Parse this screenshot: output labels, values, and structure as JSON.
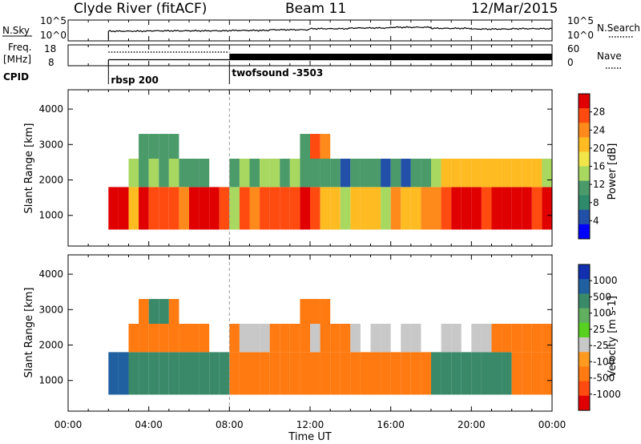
{
  "header": {
    "station": "Clyde River (fitACF)",
    "beam": "Beam 11",
    "date": "12/Mar/2015"
  },
  "top_panels": {
    "nsky_label": "N.Sky",
    "nsky_ticks": [
      "10^5",
      "10^0"
    ],
    "nsearch_label": "N.Search",
    "nsearch_ticks": [
      "10^5",
      "10^0"
    ],
    "freq_label": "Freq.",
    "freq_unit": "[MHz]",
    "freq_ticks": [
      "18",
      "8"
    ],
    "nave_label": "Nave",
    "nave_ticks": [
      "60",
      "0"
    ],
    "cpid_label": "CPID",
    "cpid_entries": [
      {
        "name": "rbsp 200",
        "start_hour": 2.0
      },
      {
        "name": "twofsound -3503",
        "start_hour": 8.0
      }
    ]
  },
  "axes": {
    "xlabel": "Time UT",
    "xticks": [
      "00:00",
      "04:00",
      "08:00",
      "12:00",
      "16:00",
      "20:00",
      "00:00"
    ],
    "ylabel": "Slant Range [km]",
    "yticks": [
      "1000",
      "2000",
      "3000",
      "4000"
    ]
  },
  "power_colorbar": {
    "label": "Power [dB]",
    "ticks": [
      "28",
      "24",
      "20",
      "16",
      "12",
      "8",
      "4"
    ],
    "colors": [
      "#e00000",
      "#ff4a10",
      "#ff8a1c",
      "#ffbb22",
      "#f0e64a",
      "#a8d860",
      "#4a9a6a",
      "#2e8a6a",
      "#2250a8",
      "#0000ff"
    ]
  },
  "velocity_colorbar": {
    "label": "Velocity [m s-1]",
    "ticks": [
      "1000",
      "500",
      "100",
      "25",
      "-25",
      "-100",
      "-500",
      "-1000"
    ],
    "colors": [
      "#1030b0",
      "#2060a0",
      "#3a8a6a",
      "#60b060",
      "#58d020",
      "#c8c8c8",
      "#ff9a20",
      "#ff7a10",
      "#ff4a10",
      "#e00000"
    ]
  },
  "chart_data": [
    {
      "type": "line",
      "title": "N.Sky",
      "x_hours": [
        2,
        4,
        6,
        8,
        10,
        12,
        14,
        16,
        18,
        20,
        22,
        24
      ],
      "values_log10": [
        2.3,
        2.4,
        2.4,
        2.5,
        2.7,
        3.0,
        3.2,
        3.4,
        3.1,
        2.9,
        3.0,
        3.2
      ],
      "xlim": [
        0,
        24
      ],
      "ylim": [
        0,
        5
      ]
    },
    {
      "type": "line",
      "title": "Freq. [MHz] / Nave",
      "x_hours": [
        2,
        8,
        8,
        24
      ],
      "freq_mhz": [
        10.5,
        10.5,
        10.5,
        10.5
      ],
      "nave_values": [
        40,
        40,
        40,
        40
      ],
      "xlim": [
        0,
        24
      ],
      "ylim": [
        8,
        18
      ]
    },
    {
      "type": "heatmap",
      "title": "Power [dB]",
      "ylabel": "Slant Range [km]",
      "xlabel": "Time UT",
      "xlim": [
        0,
        24
      ],
      "ylim": [
        180,
        4500
      ],
      "x_hours": [
        2,
        2.5,
        3,
        3.5,
        4,
        4.5,
        5,
        5.5,
        6,
        6.5,
        7,
        7.5,
        8,
        8.5,
        9,
        9.5,
        10,
        10.5,
        11,
        11.5,
        12,
        12.5,
        13,
        13.5,
        14,
        14.5,
        15,
        15.5,
        16,
        16.5,
        17,
        17.5,
        18,
        18.5,
        19,
        19.5,
        20,
        20.5,
        21,
        21.5,
        22,
        22.5,
        23,
        23.5
      ],
      "bands": [
        {
          "range_km": [
            600,
            1800
          ],
          "power_db": [
            28,
            26,
            18,
            26,
            24,
            22,
            22,
            20,
            26,
            28,
            26,
            24,
            14,
            22,
            20,
            22,
            24,
            22,
            24,
            26,
            22,
            18,
            16,
            14,
            18,
            16,
            16,
            14,
            20,
            18,
            18,
            20,
            20,
            22,
            26,
            26,
            26,
            24,
            26,
            26,
            26,
            26,
            24,
            26
          ]
        },
        {
          "range_km": [
            1800,
            2600
          ],
          "power_db": [
            0,
            0,
            14,
            12,
            14,
            12,
            14,
            12,
            10,
            12,
            0,
            0,
            10,
            14,
            12,
            14,
            14,
            12,
            14,
            10,
            10,
            12,
            10,
            8,
            12,
            10,
            10,
            8,
            10,
            8,
            10,
            12,
            14,
            16,
            16,
            18,
            16,
            18,
            16,
            18,
            18,
            16,
            16,
            14
          ]
        },
        {
          "range_km": [
            2600,
            3300
          ],
          "power_db": [
            0,
            0,
            0,
            12,
            10,
            10,
            12,
            0,
            0,
            0,
            0,
            0,
            0,
            0,
            0,
            0,
            0,
            0,
            0,
            12,
            22,
            20,
            0,
            0,
            0,
            0,
            0,
            0,
            0,
            0,
            0,
            0,
            0,
            0,
            0,
            0,
            0,
            0,
            0,
            0,
            0,
            0,
            0,
            0
          ]
        }
      ],
      "colorbar_ticks": [
        4,
        8,
        12,
        16,
        20,
        24,
        28
      ]
    },
    {
      "type": "heatmap",
      "title": "Velocity [m s-1]",
      "ylabel": "Slant Range [km]",
      "xlabel": "Time UT",
      "xlim": [
        0,
        24
      ],
      "ylim": [
        180,
        4500
      ],
      "x_hours": [
        2,
        2.5,
        3,
        3.5,
        4,
        4.5,
        5,
        5.5,
        6,
        6.5,
        7,
        7.5,
        8,
        8.5,
        9,
        9.5,
        10,
        10.5,
        11,
        11.5,
        12,
        12.5,
        13,
        13.5,
        14,
        14.5,
        15,
        15.5,
        16,
        16.5,
        17,
        17.5,
        18,
        18.5,
        19,
        19.5,
        20,
        20.5,
        21,
        21.5,
        22,
        22.5,
        23,
        23.5
      ],
      "bands": [
        {
          "range_km": [
            600,
            1800
          ],
          "velocity_ms": [
            300,
            250,
            80,
            60,
            70,
            40,
            60,
            50,
            40,
            60,
            80,
            70,
            -150,
            -120,
            -150,
            -200,
            -180,
            -160,
            -150,
            -170,
            -150,
            -130,
            -120,
            -110,
            -140,
            -120,
            -100,
            -110,
            -140,
            -160,
            -130,
            -120,
            60,
            80,
            60,
            70,
            60,
            80,
            60,
            70,
            -150,
            -200,
            -180,
            -160
          ]
        },
        {
          "range_km": [
            1800,
            2600
          ],
          "velocity_ms": [
            0,
            0,
            -150,
            -120,
            -150,
            -130,
            -140,
            -120,
            -150,
            -100,
            0,
            0,
            -120,
            -20,
            -10,
            10,
            -150,
            -140,
            -160,
            -120,
            -20,
            -100,
            -120,
            -150,
            -20,
            0,
            -10,
            10,
            0,
            -20,
            10,
            0,
            0,
            -20,
            10,
            0,
            -20,
            10,
            -150,
            -120,
            -130,
            -150,
            -140,
            -120
          ]
        },
        {
          "range_km": [
            2600,
            3300
          ],
          "velocity_ms": [
            0,
            0,
            0,
            -150,
            80,
            60,
            -150,
            0,
            0,
            0,
            0,
            0,
            0,
            0,
            0,
            0,
            0,
            0,
            0,
            -150,
            -120,
            -140,
            0,
            0,
            0,
            0,
            0,
            0,
            0,
            0,
            0,
            0,
            0,
            0,
            0,
            0,
            0,
            0,
            0,
            0,
            0,
            0,
            0,
            0
          ]
        }
      ],
      "colorbar_ticks": [
        -1000,
        -500,
        -100,
        -25,
        25,
        100,
        500,
        1000
      ]
    }
  ]
}
